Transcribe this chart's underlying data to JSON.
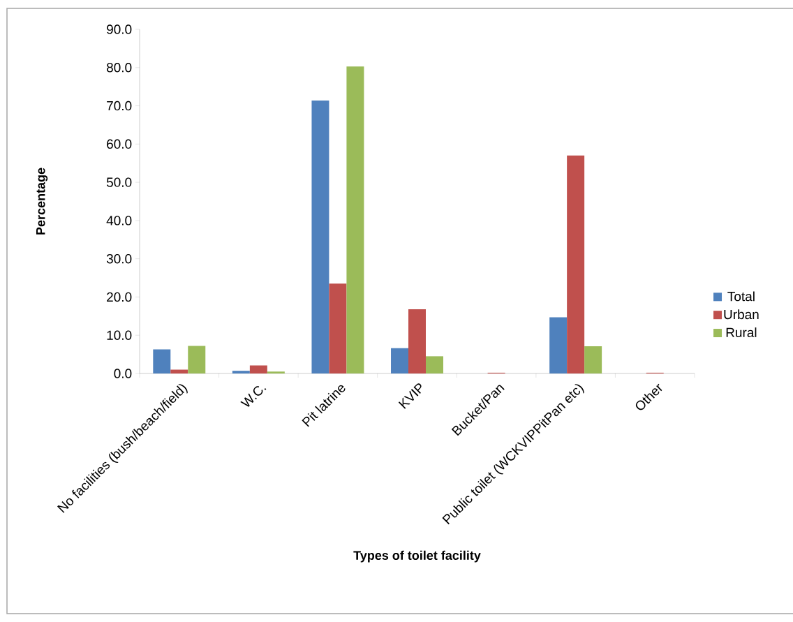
{
  "chart_data": {
    "type": "bar",
    "xlabel": "Types of toilet facility",
    "ylabel": "Percentage",
    "categories": [
      "No facilities (bush/beach/field)",
      "W.C.",
      "Pit latrine",
      "KVIP",
      "Bucket/Pan",
      "Public toilet (WCKVIPPitPan etc)",
      "Other"
    ],
    "series": [
      {
        "name": "Total",
        "color": "#4f81bd",
        "values": [
          6.3,
          0.7,
          71.4,
          6.6,
          0,
          14.7,
          0
        ]
      },
      {
        "name": "Urban",
        "color": "#c0504d",
        "values": [
          1.0,
          2.1,
          23.5,
          16.8,
          0.2,
          57.0,
          0.2
        ]
      },
      {
        "name": "Rural",
        "color": "#9bbb59",
        "values": [
          7.2,
          0.5,
          80.3,
          4.5,
          0,
          7.1,
          0
        ]
      }
    ],
    "ylim": [
      0,
      90
    ],
    "yticks": [
      {
        "value": 0,
        "label": "0.0"
      },
      {
        "value": 10,
        "label": "10.0"
      },
      {
        "value": 20,
        "label": "20.0"
      },
      {
        "value": 30,
        "label": "30.0"
      },
      {
        "value": 40,
        "label": "40.0"
      },
      {
        "value": 50,
        "label": "50.0"
      },
      {
        "value": 60,
        "label": "60.0"
      },
      {
        "value": 70,
        "label": "70.0"
      },
      {
        "value": 80,
        "label": "80.0"
      },
      {
        "value": 90,
        "label": "90.0"
      }
    ],
    "grid": false,
    "legend": "right"
  }
}
